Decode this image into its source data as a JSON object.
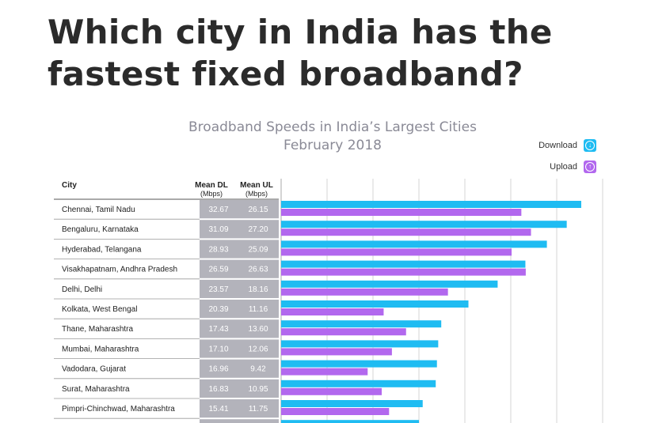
{
  "headline": {
    "line1": "Which city in India has the",
    "line2": "fastest fixed broadband?"
  },
  "legend": {
    "download": "Download",
    "upload": "Upload",
    "download_icon": "download-arrow-icon",
    "upload_icon": "upload-arrow-icon"
  },
  "table_headers": {
    "city": "City",
    "mean_dl": "Mean DL",
    "mean_dl_unit": "(Mbps)",
    "mean_ul": "Mean UL",
    "mean_ul_unit": "(Mbps)"
  },
  "colors": {
    "download": "#1fbcf2",
    "upload": "#b268ee",
    "value_cell": "#b3b3bb",
    "gridline": "#d5d5d5",
    "title": "#8a8a96"
  },
  "chart_data": {
    "type": "bar",
    "orientation": "horizontal",
    "title": "Broadband Speeds in India’s Largest Cities",
    "subtitle": "February 2018",
    "categories": [
      "Chennai, Tamil Nadu",
      "Bengaluru, Karnataka",
      "Hyderabad, Telangana",
      "Visakhapatnam, Andhra Pradesh",
      "Delhi, Delhi",
      "Kolkata, West Bengal",
      "Thane, Maharashtra",
      "Mumbai, Maharashtra",
      "Vadodara, Gujarat",
      "Surat, Maharashtra",
      "Pimpri-Chinchwad, Maharashtra"
    ],
    "series": [
      {
        "name": "Download",
        "values": [
          32.67,
          31.09,
          28.93,
          26.59,
          23.57,
          20.39,
          17.43,
          17.1,
          16.96,
          16.83,
          15.41
        ]
      },
      {
        "name": "Upload",
        "values": [
          26.15,
          27.2,
          25.09,
          26.63,
          18.16,
          11.16,
          13.6,
          12.06,
          9.42,
          10.95,
          11.75
        ]
      }
    ],
    "display_values": {
      "download": [
        "32.67",
        "31.09",
        "28.93",
        "26.59",
        "23.57",
        "20.39",
        "17.43",
        "17.10",
        "16.96",
        "16.83",
        "15.41"
      ],
      "upload": [
        "26.15",
        "27.20",
        "25.09",
        "26.63",
        "18.16",
        "11.16",
        "13.60",
        "12.06",
        "9.42",
        "10.95",
        "11.75"
      ]
    },
    "xlim": [
      0,
      35
    ],
    "grid": true,
    "legend_position": "top-right"
  }
}
